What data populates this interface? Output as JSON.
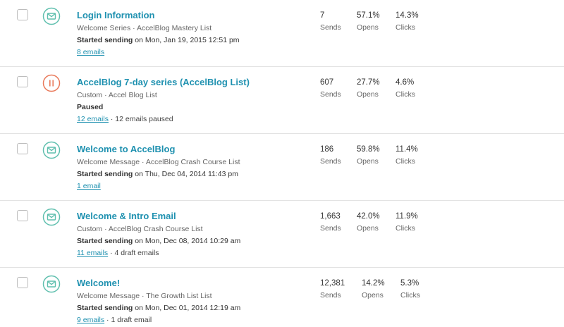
{
  "campaigns": [
    {
      "status_icon": "envelope-icon",
      "title": "Login Information",
      "subtitle": "Welcome Series · AccelBlog Mastery List",
      "status_bold": "Started sending",
      "status_rest": " on Mon, Jan 19, 2015 12:51 pm",
      "emails_link": "8 emails",
      "emails_extra": "",
      "sends": "7",
      "sends_label": "Sends",
      "opens": "57.1%",
      "opens_label": "Opens",
      "clicks": "14.3%",
      "clicks_label": "Clicks"
    },
    {
      "status_icon": "pause-icon",
      "title": "AccelBlog 7-day series (AccelBlog List)",
      "subtitle": "Custom · Accel Blog List",
      "status_bold": "Paused",
      "status_rest": "",
      "emails_link": "12 emails",
      "emails_extra": " · 12 emails paused",
      "sends": "607",
      "sends_label": "Sends",
      "opens": "27.7%",
      "opens_label": "Opens",
      "clicks": "4.6%",
      "clicks_label": "Clicks"
    },
    {
      "status_icon": "envelope-icon",
      "title": "Welcome to AccelBlog",
      "subtitle": "Welcome Message · AccelBlog Crash Course List",
      "status_bold": "Started sending",
      "status_rest": " on Thu, Dec 04, 2014 11:43 pm",
      "emails_link": "1 email",
      "emails_extra": "",
      "sends": "186",
      "sends_label": "Sends",
      "opens": "59.8%",
      "opens_label": "Opens",
      "clicks": "11.4%",
      "clicks_label": "Clicks"
    },
    {
      "status_icon": "envelope-icon",
      "title": "Welcome & Intro Email",
      "subtitle": "Custom · AccelBlog Crash Course List",
      "status_bold": "Started sending",
      "status_rest": " on Mon, Dec 08, 2014 10:29 am",
      "emails_link": "11 emails",
      "emails_extra": " · 4 draft emails",
      "sends": "1,663",
      "sends_label": "Sends",
      "opens": "42.0%",
      "opens_label": "Opens",
      "clicks": "11.9%",
      "clicks_label": "Clicks"
    },
    {
      "status_icon": "envelope-icon",
      "title": "Welcome!",
      "subtitle": "Welcome Message · The Growth List List",
      "status_bold": "Started sending",
      "status_rest": " on Mon, Dec 01, 2014 12:19 am",
      "emails_link": "9 emails",
      "emails_extra": " · 1 draft email",
      "sends": "12,381",
      "sends_label": "Sends",
      "opens": "14.2%",
      "opens_label": "Opens",
      "clicks": "5.3%",
      "clicks_label": "Clicks"
    }
  ],
  "colors": {
    "envelope_icon": "#5fbfae",
    "pause_icon": "#e9795a",
    "link": "#1f91b0"
  }
}
